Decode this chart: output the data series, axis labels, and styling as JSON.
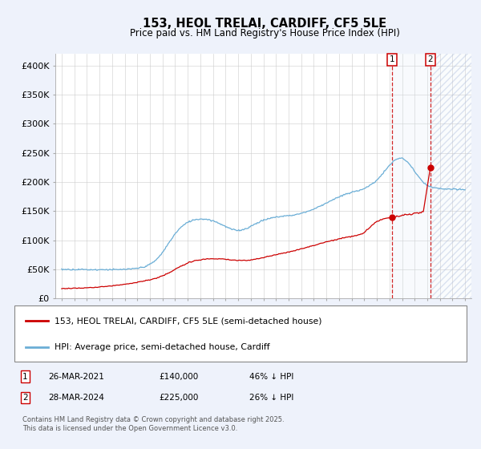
{
  "title_line1": "153, HEOL TRELAI, CARDIFF, CF5 5LE",
  "title_line2": "Price paid vs. HM Land Registry's House Price Index (HPI)",
  "ylim": [
    0,
    420000
  ],
  "yticks": [
    0,
    50000,
    100000,
    150000,
    200000,
    250000,
    300000,
    350000,
    400000
  ],
  "ytick_labels": [
    "£0",
    "£50K",
    "£100K",
    "£150K",
    "£200K",
    "£250K",
    "£300K",
    "£350K",
    "£400K"
  ],
  "xlim_start": 1994.5,
  "xlim_end": 2027.5,
  "hpi_color": "#6baed6",
  "price_color": "#cc0000",
  "vline_color": "#cc0000",
  "span_color": "#dce8f5",
  "annotation_box_color": "#cc0000",
  "legend_line1": "153, HEOL TRELAI, CARDIFF, CF5 5LE (semi-detached house)",
  "legend_line2": "HPI: Average price, semi-detached house, Cardiff",
  "footnote": "Contains HM Land Registry data © Crown copyright and database right 2025.\nThis data is licensed under the Open Government Licence v3.0.",
  "background_color": "#eef2fb",
  "plot_bg_color": "#ffffff",
  "grid_color": "#cccccc",
  "trans1_year": 2021.23,
  "trans2_year": 2024.24,
  "trans1_price": 140000,
  "trans2_price": 225000
}
